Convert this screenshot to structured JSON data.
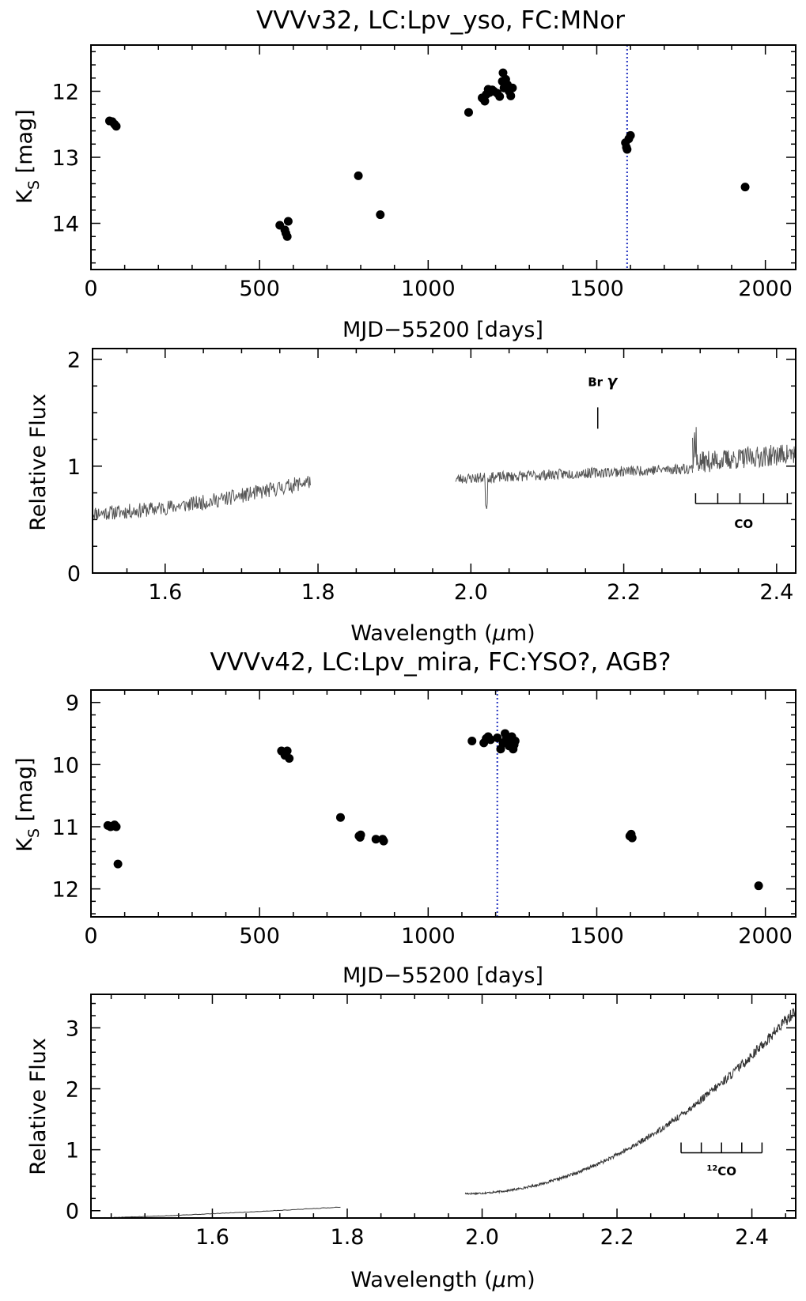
{
  "chart_data": [
    {
      "id": "vvvv32_lc",
      "type": "scatter",
      "title": "VVVv32, LC:Lpv_yso, FC:MNor",
      "xlabel": "MJD−55200 [days]",
      "ylabel": "K_S [mag]",
      "ylabel_main": "K",
      "ylabel_sub": "S",
      "ylabel_rest": " [mag]",
      "xlim": [
        0,
        2090
      ],
      "ylim": [
        11.3,
        14.7
      ],
      "y_inverted": true,
      "x_ticks": [
        0,
        500,
        1000,
        1500,
        2000
      ],
      "y_ticks": [
        12,
        13,
        14
      ],
      "marker_color": "#000000",
      "vline": {
        "x": 1590,
        "color": "#2030c0",
        "style": "dotted"
      },
      "points": [
        [
          55,
          12.45
        ],
        [
          63,
          12.46
        ],
        [
          70,
          12.5
        ],
        [
          75,
          12.53
        ],
        [
          560,
          14.03
        ],
        [
          575,
          14.1
        ],
        [
          578,
          14.15
        ],
        [
          582,
          14.2
        ],
        [
          585,
          13.97
        ],
        [
          793,
          13.28
        ],
        [
          858,
          13.87
        ],
        [
          1120,
          12.32
        ],
        [
          1160,
          12.1
        ],
        [
          1168,
          12.15
        ],
        [
          1172,
          12.05
        ],
        [
          1178,
          11.97
        ],
        [
          1182,
          12.02
        ],
        [
          1190,
          11.98
        ],
        [
          1195,
          12.0
        ],
        [
          1205,
          12.03
        ],
        [
          1212,
          12.08
        ],
        [
          1220,
          11.85
        ],
        [
          1222,
          11.72
        ],
        [
          1225,
          11.95
        ],
        [
          1230,
          11.82
        ],
        [
          1235,
          11.9
        ],
        [
          1240,
          12.0
        ],
        [
          1245,
          12.07
        ],
        [
          1250,
          11.95
        ],
        [
          1585,
          12.78
        ],
        [
          1588,
          12.85
        ],
        [
          1590,
          12.88
        ],
        [
          1595,
          12.72
        ],
        [
          1600,
          12.67
        ],
        [
          1940,
          13.45
        ]
      ]
    },
    {
      "id": "vvvv32_spec",
      "type": "line",
      "title": "",
      "xlabel": "Wavelength (μm)",
      "xlabel_pre": "Wavelength (",
      "xlabel_mu": "μ",
      "xlabel_post": "m)",
      "ylabel": "Relative Flux",
      "xlim": [
        1.505,
        2.425
      ],
      "ylim": [
        0,
        2.1
      ],
      "x_ticks": [
        1.6,
        1.8,
        2.0,
        2.2,
        2.4
      ],
      "y_ticks": [
        0,
        1,
        2
      ],
      "line_color": "#555555",
      "segments": [
        {
          "x0": 1.505,
          "x1": 1.79,
          "y0": 0.56,
          "y1": 0.86,
          "curve": 1.6,
          "noise": 0.07,
          "n": 360,
          "seed": 11
        },
        {
          "x0": 1.98,
          "x1": 2.29,
          "y0": 0.88,
          "y1": 0.98,
          "curve": 1.0,
          "noise": 0.05,
          "n": 420,
          "seed": 23,
          "dip": {
            "x": 2.02,
            "depth": 0.25
          }
        },
        {
          "x0": 2.29,
          "x1": 2.425,
          "y0": 1.03,
          "y1": 1.12,
          "curve": 1.0,
          "noise": 0.1,
          "n": 200,
          "seed": 37,
          "spike": {
            "x": 2.292,
            "height": 0.45
          }
        }
      ],
      "annotations": [
        {
          "label": "Br",
          "greek": "γ",
          "x": 2.166,
          "mark_y0": 1.35,
          "mark_y1": 1.55,
          "text_y": 1.75
        }
      ],
      "bands": [
        {
          "label": "CO",
          "superscript": "",
          "x0": 2.294,
          "x1": 2.42,
          "y": 0.65,
          "ticks": [
            2.294,
            2.323,
            2.352,
            2.383,
            2.414
          ],
          "text_y": 0.42
        }
      ]
    },
    {
      "id": "vvvv42_lc",
      "type": "scatter",
      "title": "VVVv42, LC:Lpv_mira, FC:YSO?, AGB?",
      "xlabel": "MJD−55200 [days]",
      "ylabel": "K_S [mag]",
      "ylabel_main": "K",
      "ylabel_sub": "S",
      "ylabel_rest": " [mag]",
      "xlim": [
        0,
        2090
      ],
      "ylim": [
        8.8,
        12.45
      ],
      "y_inverted": true,
      "x_ticks": [
        0,
        500,
        1000,
        1500,
        2000
      ],
      "y_ticks": [
        9,
        10,
        11,
        12
      ],
      "marker_color": "#000000",
      "vline": {
        "x": 1205,
        "color": "#2030c0",
        "style": "dotted"
      },
      "points": [
        [
          50,
          10.98
        ],
        [
          58,
          11.0
        ],
        [
          63,
          10.99
        ],
        [
          70,
          10.97
        ],
        [
          75,
          11.0
        ],
        [
          80,
          11.6
        ],
        [
          565,
          9.78
        ],
        [
          575,
          9.85
        ],
        [
          582,
          9.78
        ],
        [
          588,
          9.9
        ],
        [
          740,
          10.85
        ],
        [
          795,
          11.15
        ],
        [
          798,
          11.17
        ],
        [
          800,
          11.13
        ],
        [
          845,
          11.2
        ],
        [
          865,
          11.2
        ],
        [
          868,
          11.23
        ],
        [
          1130,
          9.62
        ],
        [
          1165,
          9.65
        ],
        [
          1172,
          9.58
        ],
        [
          1178,
          9.55
        ],
        [
          1185,
          9.6
        ],
        [
          1205,
          9.57
        ],
        [
          1215,
          9.75
        ],
        [
          1222,
          9.65
        ],
        [
          1228,
          9.5
        ],
        [
          1232,
          9.58
        ],
        [
          1236,
          9.65
        ],
        [
          1240,
          9.7
        ],
        [
          1244,
          9.6
        ],
        [
          1248,
          9.55
        ],
        [
          1252,
          9.75
        ],
        [
          1255,
          9.68
        ],
        [
          1258,
          9.62
        ],
        [
          1598,
          11.15
        ],
        [
          1602,
          11.12
        ],
        [
          1605,
          11.18
        ],
        [
          1980,
          11.95
        ]
      ]
    },
    {
      "id": "vvvv42_spec",
      "type": "line",
      "title": "",
      "xlabel": "Wavelength (μm)",
      "xlabel_pre": "Wavelength (",
      "xlabel_mu": "μ",
      "xlabel_post": "m)",
      "ylabel": "Relative Flux",
      "xlim": [
        1.42,
        2.465
      ],
      "ylim": [
        -0.12,
        3.55
      ],
      "x_ticks": [
        1.6,
        1.8,
        2.0,
        2.2,
        2.4
      ],
      "y_ticks": [
        0,
        1,
        2,
        3
      ],
      "line_color": "#333333",
      "segments": [
        {
          "x0": 1.42,
          "x1": 1.79,
          "y0": -0.12,
          "y1": 0.06,
          "curve": 1.3,
          "noise": 0.004,
          "n": 160,
          "seed": 5
        },
        {
          "x0": 1.975,
          "x1": 2.465,
          "y0": 0.28,
          "y1": 3.3,
          "curve": 2.0,
          "noise": 0.015,
          "n": 760,
          "seed": 17,
          "noise_growth": 6.0
        }
      ],
      "annotations": [],
      "bands": [
        {
          "label": "CO",
          "superscript": "12",
          "x0": 2.295,
          "x1": 2.415,
          "y": 0.95,
          "ticks": [
            2.295,
            2.325,
            2.355,
            2.385,
            2.415
          ],
          "text_y": 0.58
        }
      ]
    }
  ]
}
